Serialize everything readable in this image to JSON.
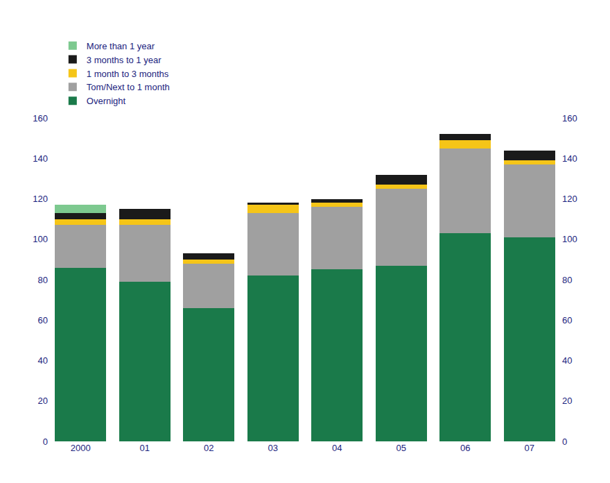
{
  "chart_data": {
    "type": "bar",
    "stacked": true,
    "categories": [
      "2000",
      "01",
      "02",
      "03",
      "04",
      "05",
      "06",
      "07"
    ],
    "series": [
      {
        "name": "Overnight",
        "color": "#1a7a4a",
        "values": [
          86,
          79,
          66,
          82,
          85,
          87,
          103,
          101
        ]
      },
      {
        "name": "Tom/Next to 1 month",
        "color": "#a0a0a0",
        "values": [
          21,
          28,
          22,
          31,
          31,
          38,
          42,
          36
        ]
      },
      {
        "name": "1 month to 3 months",
        "color": "#f5c518",
        "values": [
          3,
          3,
          2,
          4,
          2,
          2,
          4,
          2
        ]
      },
      {
        "name": "3 months to 1 year",
        "color": "#1a1a1a",
        "values": [
          3,
          5,
          3,
          1,
          2,
          5,
          3,
          5
        ]
      },
      {
        "name": "More than 1 year",
        "color": "#7dc98f",
        "values": [
          4,
          0,
          0,
          0,
          0,
          0,
          0,
          0
        ]
      }
    ],
    "ylim": [
      0,
      160
    ],
    "yticks": [
      0,
      20,
      40,
      60,
      80,
      100,
      120,
      140,
      160
    ],
    "y2lim": [
      0,
      160
    ],
    "y2ticks": [
      0,
      20,
      40,
      60,
      80,
      100,
      120,
      140,
      160
    ],
    "grid": false,
    "legend": "top"
  }
}
